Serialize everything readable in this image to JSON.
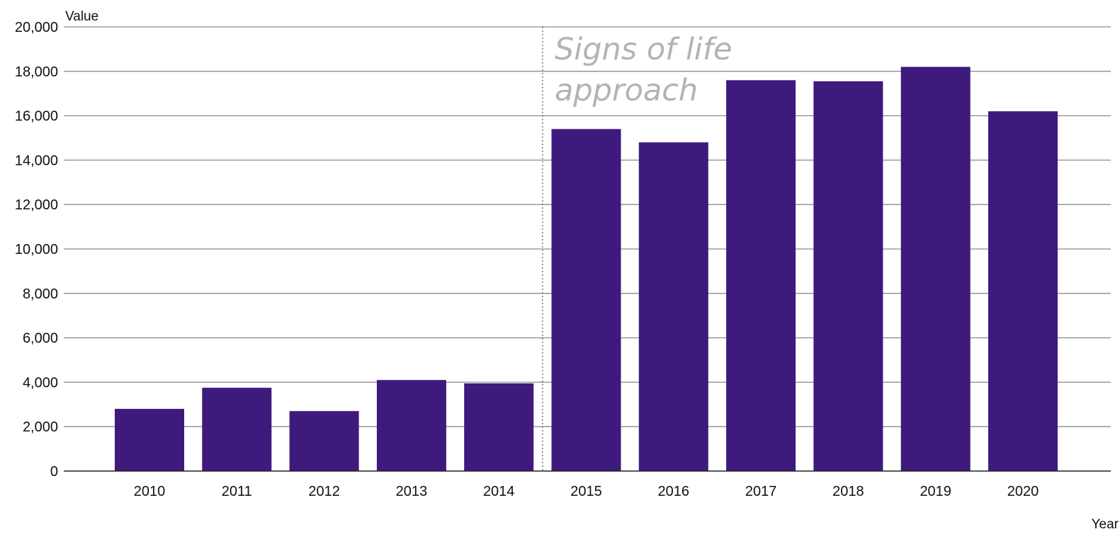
{
  "chart_data": {
    "type": "bar",
    "xlabel": "Year",
    "ylabel": "Value",
    "categories": [
      "2010",
      "2011",
      "2012",
      "2013",
      "2014",
      "2015",
      "2016",
      "2017",
      "2018",
      "2019",
      "2020"
    ],
    "values": [
      2800,
      3750,
      2700,
      4100,
      3950,
      15400,
      14800,
      17600,
      17550,
      18200,
      16200
    ],
    "ylim": [
      0,
      20000
    ],
    "yticks": [
      "0",
      "2,000",
      "4,000",
      "6,000",
      "8,000",
      "10,000",
      "12,000",
      "14,000",
      "16,000",
      "18,000",
      "20,000"
    ],
    "grid": true,
    "bar_color": "#3e1a7d",
    "annotation": {
      "lines": [
        "Signs of life",
        "approach"
      ],
      "between_categories": [
        "2014",
        "2015"
      ],
      "line_style": "dotted",
      "color": "#b3b3b3"
    }
  }
}
